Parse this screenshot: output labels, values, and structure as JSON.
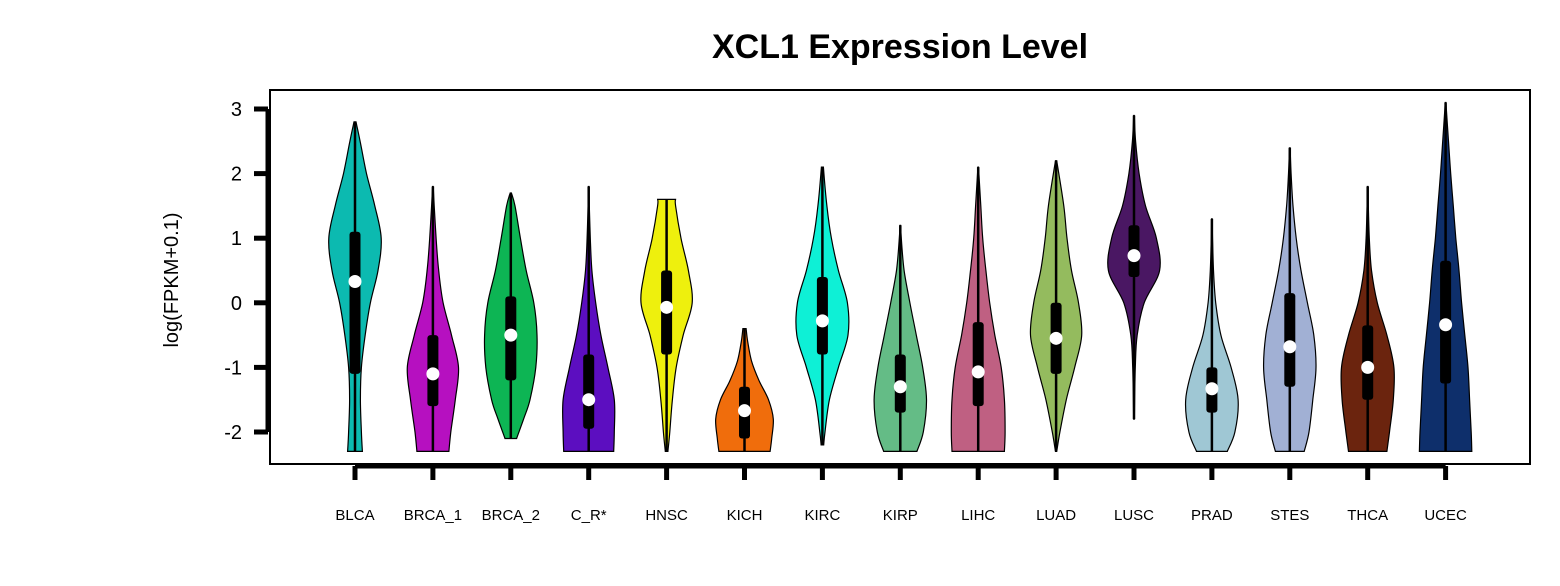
{
  "chart_data": {
    "type": "violin",
    "title": "XCL1 Expression Level",
    "xlabel": "",
    "ylabel": "log(FPKM+0.1)",
    "ylim": [
      -2.5,
      3.3
    ],
    "yticks": [
      3,
      2,
      1,
      0,
      -1,
      -2
    ],
    "ytick_labels": [
      "3",
      "2",
      "1",
      "0",
      "-1",
      "-2"
    ],
    "grid": false,
    "legend": false,
    "categories": [
      "BLCA",
      "BRCA_1",
      "BRCA_2",
      "C_R*",
      "HNSC",
      "KICH",
      "KIRC",
      "KIRP",
      "LIHC",
      "LUAD",
      "LUSC",
      "PRAD",
      "STES",
      "THCA",
      "UCEC"
    ],
    "series": [
      {
        "category": "BLCA",
        "color": "#0cbab0",
        "min": -2.3,
        "max": 2.8,
        "q1": -1.1,
        "q3": 1.1,
        "median": 0.33,
        "shape": [
          [
            -2.3,
            0.23
          ],
          [
            -2.0,
            0.2
          ],
          [
            -1.5,
            0.17
          ],
          [
            -1.0,
            0.2
          ],
          [
            -0.5,
            0.32
          ],
          [
            0.0,
            0.48
          ],
          [
            0.5,
            0.72
          ],
          [
            1.0,
            0.82
          ],
          [
            1.5,
            0.62
          ],
          [
            2.0,
            0.36
          ],
          [
            2.5,
            0.16
          ],
          [
            2.8,
            0.03
          ]
        ]
      },
      {
        "category": "BRCA_1",
        "color": "#b610c0",
        "min": -2.3,
        "max": 1.8,
        "q1": -1.6,
        "q3": -0.5,
        "median": -1.1,
        "shape": [
          [
            -2.3,
            0.5
          ],
          [
            -2.0,
            0.56
          ],
          [
            -1.5,
            0.7
          ],
          [
            -1.0,
            0.8
          ],
          [
            -0.5,
            0.58
          ],
          [
            0.0,
            0.32
          ],
          [
            0.5,
            0.18
          ],
          [
            1.0,
            0.1
          ],
          [
            1.5,
            0.04
          ],
          [
            1.8,
            0.01
          ]
        ]
      },
      {
        "category": "BRCA_2",
        "color": "#0db554",
        "min": -2.1,
        "max": 1.7,
        "q1": -1.2,
        "q3": 0.1,
        "median": -0.5,
        "shape": [
          [
            -2.1,
            0.18
          ],
          [
            -1.8,
            0.4
          ],
          [
            -1.5,
            0.6
          ],
          [
            -1.0,
            0.78
          ],
          [
            -0.5,
            0.82
          ],
          [
            0.0,
            0.72
          ],
          [
            0.5,
            0.48
          ],
          [
            1.0,
            0.3
          ],
          [
            1.5,
            0.13
          ],
          [
            1.7,
            0.02
          ]
        ]
      },
      {
        "category": "C_R*",
        "color": "#5c0ec0",
        "min": -2.3,
        "max": 1.8,
        "q1": -1.95,
        "q3": -0.8,
        "median": -1.5,
        "shape": [
          [
            -2.3,
            0.78
          ],
          [
            -2.0,
            0.8
          ],
          [
            -1.5,
            0.8
          ],
          [
            -1.0,
            0.6
          ],
          [
            -0.5,
            0.38
          ],
          [
            0.0,
            0.22
          ],
          [
            0.5,
            0.1
          ],
          [
            1.0,
            0.05
          ],
          [
            1.5,
            0.02
          ],
          [
            1.8,
            0.01
          ]
        ]
      },
      {
        "category": "HNSC",
        "color": "#eef00d",
        "min": -2.3,
        "max": 1.6,
        "q1": -0.8,
        "q3": 0.5,
        "median": -0.07,
        "shape": [
          [
            -2.3,
            0.04
          ],
          [
            -2.0,
            0.1
          ],
          [
            -1.5,
            0.18
          ],
          [
            -1.0,
            0.3
          ],
          [
            -0.5,
            0.52
          ],
          [
            0.0,
            0.8
          ],
          [
            0.5,
            0.68
          ],
          [
            1.0,
            0.45
          ],
          [
            1.5,
            0.28
          ],
          [
            1.6,
            0.28
          ]
        ]
      },
      {
        "category": "KICH",
        "color": "#f06d0c",
        "min": -2.3,
        "max": -0.4,
        "q1": -2.1,
        "q3": -1.3,
        "median": -1.67,
        "shape": [
          [
            -2.3,
            0.8
          ],
          [
            -2.1,
            0.85
          ],
          [
            -1.8,
            0.9
          ],
          [
            -1.5,
            0.75
          ],
          [
            -1.2,
            0.45
          ],
          [
            -0.9,
            0.22
          ],
          [
            -0.6,
            0.1
          ],
          [
            -0.4,
            0.05
          ]
        ]
      },
      {
        "category": "KIRC",
        "color": "#0ef0d6",
        "min": -2.2,
        "max": 2.1,
        "q1": -0.8,
        "q3": 0.4,
        "median": -0.28,
        "shape": [
          [
            -2.2,
            0.04
          ],
          [
            -2.0,
            0.08
          ],
          [
            -1.5,
            0.22
          ],
          [
            -1.0,
            0.5
          ],
          [
            -0.5,
            0.8
          ],
          [
            0.0,
            0.78
          ],
          [
            0.5,
            0.5
          ],
          [
            1.0,
            0.28
          ],
          [
            1.5,
            0.14
          ],
          [
            2.1,
            0.03
          ]
        ]
      },
      {
        "category": "KIRP",
        "color": "#64bc86",
        "min": -2.3,
        "max": 1.2,
        "q1": -1.7,
        "q3": -0.8,
        "median": -1.3,
        "shape": [
          [
            -2.3,
            0.52
          ],
          [
            -2.0,
            0.72
          ],
          [
            -1.5,
            0.82
          ],
          [
            -1.0,
            0.7
          ],
          [
            -0.5,
            0.5
          ],
          [
            0.0,
            0.3
          ],
          [
            0.5,
            0.12
          ],
          [
            1.0,
            0.03
          ],
          [
            1.2,
            0.01
          ]
        ]
      },
      {
        "category": "LIHC",
        "color": "#bf6082",
        "min": -2.3,
        "max": 2.1,
        "q1": -1.6,
        "q3": -0.3,
        "median": -1.07,
        "shape": [
          [
            -2.3,
            0.82
          ],
          [
            -2.0,
            0.84
          ],
          [
            -1.5,
            0.82
          ],
          [
            -1.0,
            0.72
          ],
          [
            -0.5,
            0.52
          ],
          [
            0.0,
            0.36
          ],
          [
            0.5,
            0.24
          ],
          [
            1.0,
            0.14
          ],
          [
            1.5,
            0.08
          ],
          [
            2.1,
            0.01
          ]
        ]
      },
      {
        "category": "LUAD",
        "color": "#94bb5e",
        "min": -2.3,
        "max": 2.2,
        "q1": -1.1,
        "q3": 0.0,
        "median": -0.55,
        "shape": [
          [
            -2.3,
            0.02
          ],
          [
            -2.0,
            0.12
          ],
          [
            -1.5,
            0.32
          ],
          [
            -1.0,
            0.58
          ],
          [
            -0.5,
            0.8
          ],
          [
            0.0,
            0.7
          ],
          [
            0.5,
            0.48
          ],
          [
            1.0,
            0.34
          ],
          [
            1.5,
            0.24
          ],
          [
            2.2,
            0.02
          ]
        ]
      },
      {
        "category": "LUSC",
        "color": "#4a1763",
        "min": -1.8,
        "max": 2.9,
        "q1": 0.4,
        "q3": 1.2,
        "median": 0.73,
        "shape": [
          [
            -1.8,
            0.01
          ],
          [
            -1.0,
            0.04
          ],
          [
            -0.5,
            0.1
          ],
          [
            0.0,
            0.32
          ],
          [
            0.5,
            0.8
          ],
          [
            1.0,
            0.7
          ],
          [
            1.5,
            0.36
          ],
          [
            2.0,
            0.16
          ],
          [
            2.5,
            0.05
          ],
          [
            2.9,
            0.01
          ]
        ]
      },
      {
        "category": "PRAD",
        "color": "#9fc7d4",
        "min": -2.3,
        "max": 1.3,
        "q1": -1.7,
        "q3": -1.0,
        "median": -1.33,
        "shape": [
          [
            -2.3,
            0.48
          ],
          [
            -2.0,
            0.72
          ],
          [
            -1.5,
            0.82
          ],
          [
            -1.0,
            0.6
          ],
          [
            -0.5,
            0.28
          ],
          [
            0.0,
            0.12
          ],
          [
            0.5,
            0.05
          ],
          [
            1.0,
            0.02
          ],
          [
            1.3,
            0.01
          ]
        ]
      },
      {
        "category": "STES",
        "color": "#a1b0d4",
        "min": -2.3,
        "max": 2.4,
        "q1": -1.3,
        "q3": 0.15,
        "median": -0.68,
        "shape": [
          [
            -2.3,
            0.45
          ],
          [
            -2.0,
            0.6
          ],
          [
            -1.5,
            0.72
          ],
          [
            -1.0,
            0.82
          ],
          [
            -0.5,
            0.75
          ],
          [
            0.0,
            0.55
          ],
          [
            0.5,
            0.35
          ],
          [
            1.0,
            0.2
          ],
          [
            1.5,
            0.1
          ],
          [
            2.0,
            0.04
          ],
          [
            2.4,
            0.01
          ]
        ]
      },
      {
        "category": "THCA",
        "color": "#6b240e",
        "min": -2.3,
        "max": 1.8,
        "q1": -1.5,
        "q3": -0.35,
        "median": -1.0,
        "shape": [
          [
            -2.3,
            0.6
          ],
          [
            -2.0,
            0.68
          ],
          [
            -1.5,
            0.8
          ],
          [
            -1.0,
            0.82
          ],
          [
            -0.5,
            0.6
          ],
          [
            0.0,
            0.3
          ],
          [
            0.5,
            0.12
          ],
          [
            1.0,
            0.05
          ],
          [
            1.5,
            0.02
          ],
          [
            1.8,
            0.01
          ]
        ]
      },
      {
        "category": "UCEC",
        "color": "#0e2f6b",
        "min": -2.3,
        "max": 3.1,
        "q1": -1.25,
        "q3": 0.65,
        "median": -0.34,
        "shape": [
          [
            -2.3,
            0.82
          ],
          [
            -2.0,
            0.8
          ],
          [
            -1.5,
            0.75
          ],
          [
            -1.0,
            0.7
          ],
          [
            -0.5,
            0.6
          ],
          [
            0.0,
            0.5
          ],
          [
            0.5,
            0.42
          ],
          [
            1.0,
            0.32
          ],
          [
            1.5,
            0.24
          ],
          [
            2.0,
            0.16
          ],
          [
            2.5,
            0.09
          ],
          [
            3.1,
            0.01
          ]
        ]
      }
    ]
  }
}
